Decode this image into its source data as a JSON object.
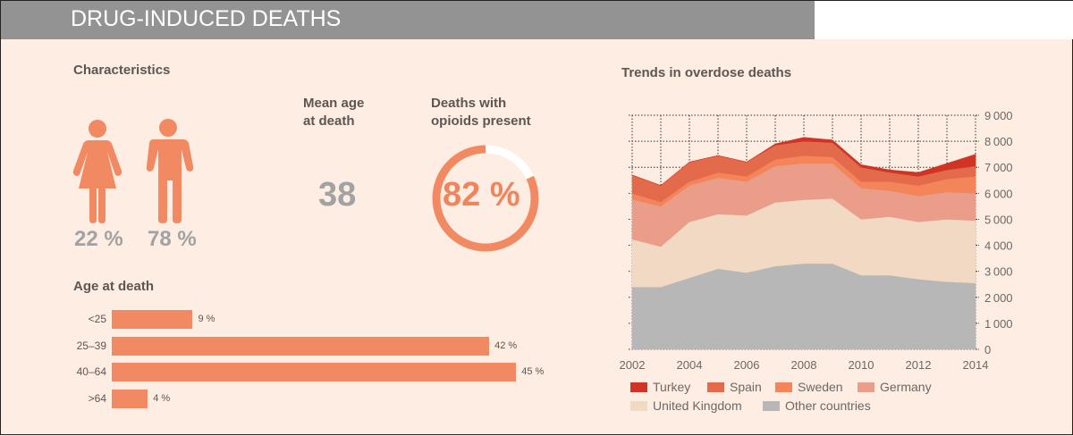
{
  "header": {
    "title": "DRUG-INDUCED DEATHS"
  },
  "characteristics": {
    "title": "Characteristics",
    "female_pct": "22 %",
    "male_pct": "78 %",
    "female_share": 0.22,
    "male_share": 0.78,
    "mean_age_label_line1": "Mean age",
    "mean_age_label_line2": "at death",
    "mean_age_value": "38",
    "opioids_label_line1": "Deaths with",
    "opioids_label_line2": "opioids present",
    "opioids_value": "82 %",
    "opioids_share": 0.82
  },
  "colors": {
    "accent": "#f18a62",
    "header_bg": "#939393",
    "panel_bg": "#fdede3",
    "numbers_grey": "#a2a2a2"
  },
  "age_at_death": {
    "title": "Age at death",
    "rows": [
      {
        "label": "<25",
        "value": 9,
        "value_label": "9 %"
      },
      {
        "label": "25–39",
        "value": 42,
        "value_label": "42 %"
      },
      {
        "label": "40–64",
        "value": 45,
        "value_label": "45 %"
      },
      {
        "label": ">64",
        "value": 4,
        "value_label": "4 %"
      }
    ]
  },
  "chart_data": {
    "type": "area",
    "stacked": true,
    "title": "Trends in overdose deaths",
    "xlabel": "",
    "ylabel": "",
    "x": [
      2002,
      2003,
      2004,
      2005,
      2006,
      2007,
      2008,
      2009,
      2010,
      2011,
      2012,
      2013,
      2014
    ],
    "x_tick_labels": [
      "2002",
      "2004",
      "2006",
      "2008",
      "2010",
      "2012",
      "2014"
    ],
    "y_tick_labels": [
      "0",
      "1000",
      "2000",
      "3000",
      "4000",
      "5000",
      "6000",
      "7000",
      "8000",
      "9000"
    ],
    "ylim": [
      0,
      9000
    ],
    "y_axis_side": "right",
    "grid": "dotted, shown above the data only",
    "legend_position": "bottom",
    "series": [
      {
        "name": "Other countries",
        "color": "#b7b7b7",
        "values": [
          2400,
          2400,
          2750,
          3100,
          2950,
          3200,
          3300,
          3300,
          2850,
          2850,
          2700,
          2600,
          2550
        ]
      },
      {
        "name": "United Kingdom",
        "color": "#f2d9c4",
        "values": [
          1830,
          1550,
          2150,
          2100,
          2200,
          2450,
          2450,
          2500,
          2150,
          2250,
          2200,
          2400,
          2400
        ]
      },
      {
        "name": "Germany",
        "color": "#ea9d88",
        "values": [
          1540,
          1550,
          1400,
          1400,
          1300,
          1400,
          1400,
          1350,
          1200,
          1000,
          1000,
          1050,
          1050
        ]
      },
      {
        "name": "Sweden",
        "color": "#f4845a",
        "values": [
          230,
          170,
          150,
          200,
          200,
          250,
          300,
          250,
          250,
          350,
          400,
          500,
          650
        ]
      },
      {
        "name": "Spain",
        "color": "#e36a4a",
        "values": [
          700,
          630,
          750,
          650,
          550,
          550,
          550,
          550,
          550,
          350,
          350,
          350,
          400
        ]
      },
      {
        "name": "Turkey",
        "color": "#cf3425",
        "values": [
          0,
          0,
          0,
          0,
          0,
          50,
          150,
          100,
          100,
          100,
          150,
          250,
          450
        ]
      }
    ],
    "legend": [
      {
        "name": "Turkey",
        "color": "#cf3425"
      },
      {
        "name": "Spain",
        "color": "#e36a4a"
      },
      {
        "name": "Sweden",
        "color": "#f4845a"
      },
      {
        "name": "Germany",
        "color": "#ea9d88"
      },
      {
        "name": "United Kingdom",
        "color": "#f2d9c4"
      },
      {
        "name": "Other countries",
        "color": "#b7b7b7"
      }
    ]
  }
}
